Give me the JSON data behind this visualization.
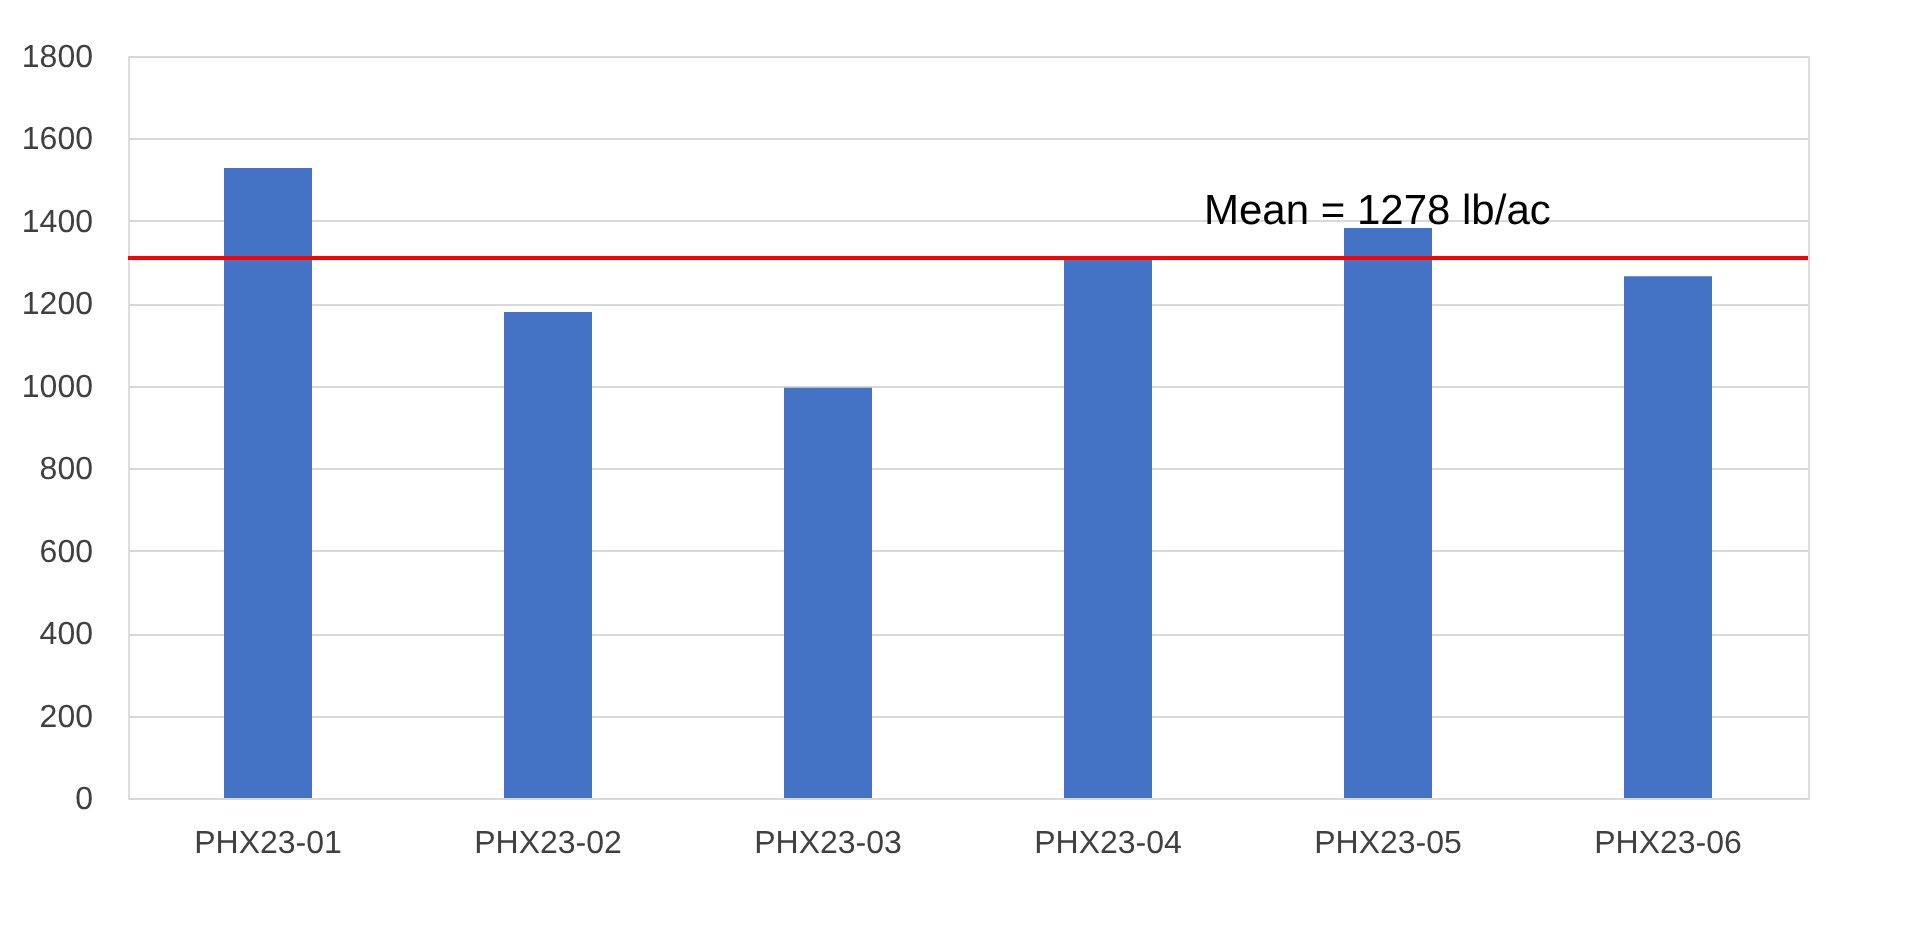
{
  "chart_data": {
    "type": "bar",
    "categories": [
      "PHX23-01",
      "PHX23-02",
      "PHX23-03",
      "PHX23-04",
      "PHX23-05",
      "PHX23-06"
    ],
    "values": [
      1528,
      1179,
      995,
      1315,
      1383,
      1266
    ],
    "color": "#4472c4",
    "ylim": [
      0,
      1800
    ],
    "yticks": [
      0,
      200,
      400,
      600,
      800,
      1000,
      1200,
      1400,
      1600,
      1800
    ],
    "grid": "y",
    "annotations": [
      "Mean = 1278 lb/ac"
    ],
    "ref_lines": [
      {
        "axis": "y",
        "value": 1310,
        "color": "#ff0000"
      }
    ]
  }
}
